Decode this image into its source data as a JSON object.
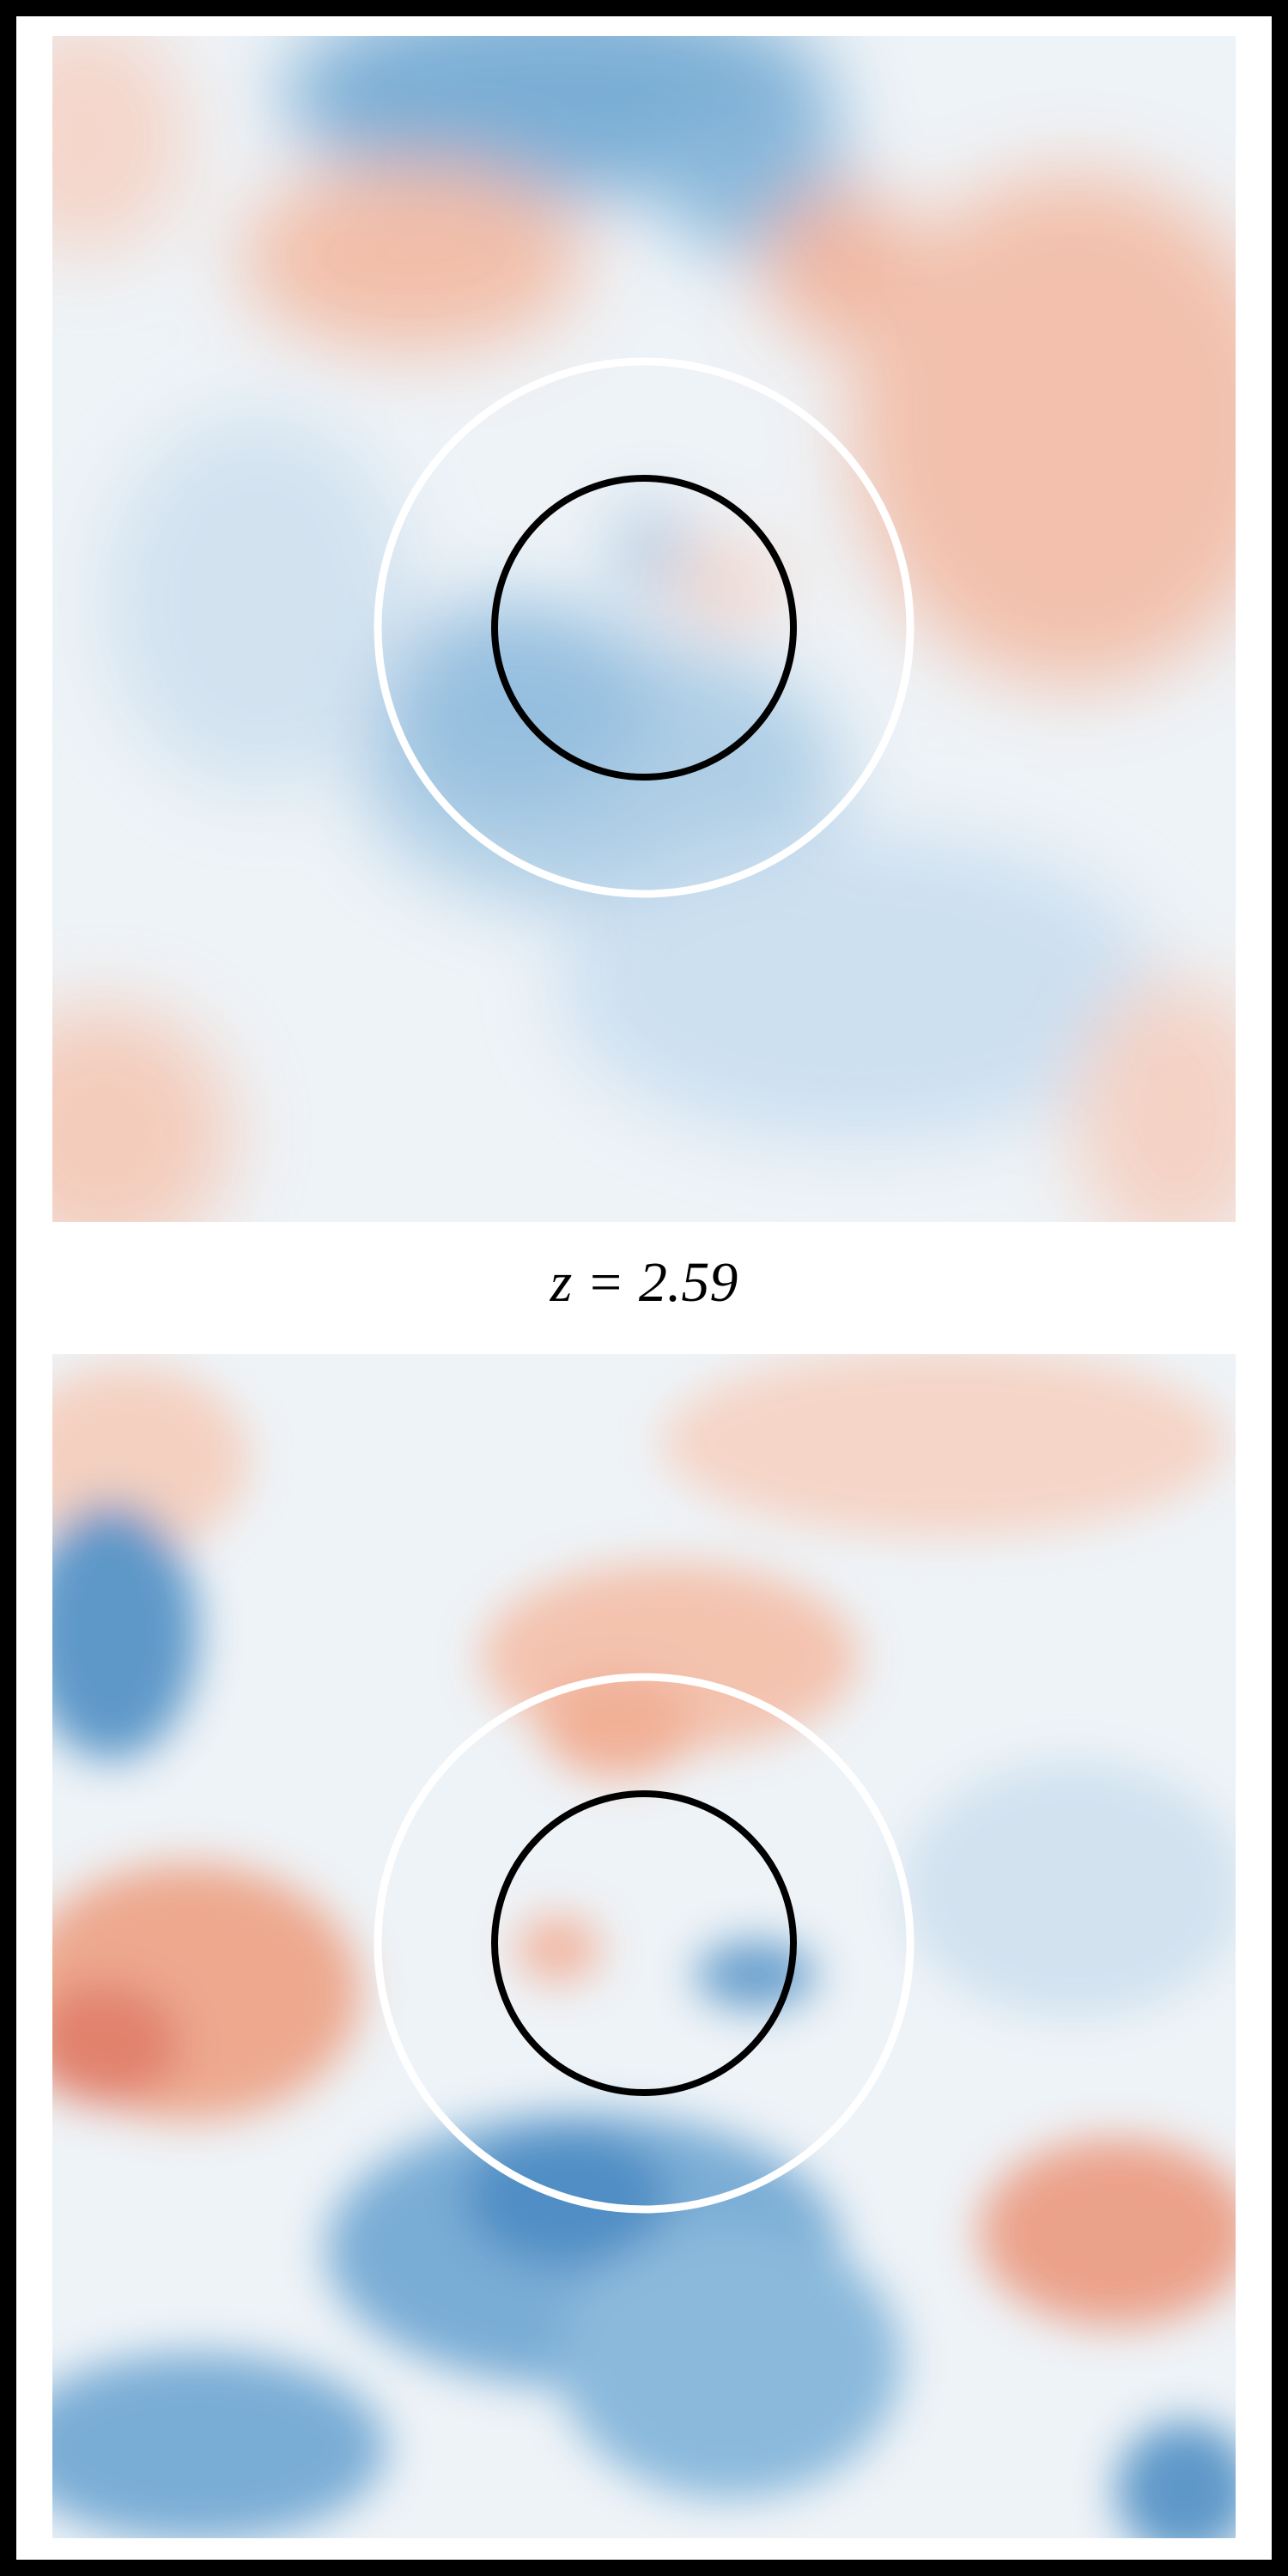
{
  "label": "z = 2.59"
}
